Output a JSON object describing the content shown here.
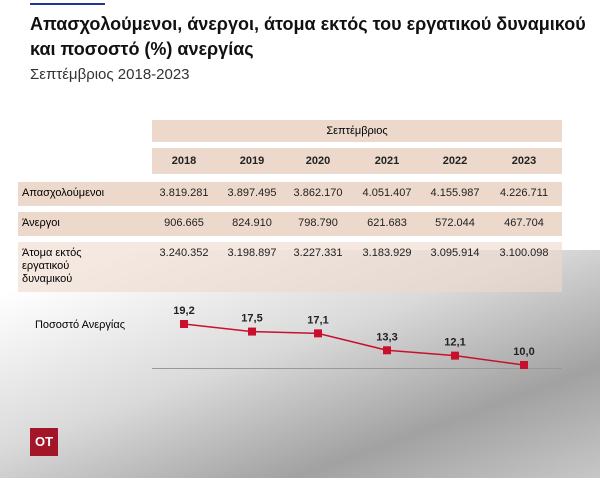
{
  "header": {
    "title": "Απασχολούμενοι, άνεργοι, άτομα εκτός του εργατικού δυναμικού και ποσοστό (%) ανεργίας",
    "subtitle": "Σεπτέμβριος 2018-2023"
  },
  "table": {
    "group_header": "Σεπτέμβριος",
    "columns": [
      "2018",
      "2019",
      "2020",
      "2021",
      "2022",
      "2023"
    ],
    "rows": [
      {
        "label": "Απασχολούμενοι",
        "cells": [
          "3.819.281",
          "3.897.495",
          "3.862.170",
          "4.051.407",
          "4.155.987",
          "4.226.711"
        ]
      },
      {
        "label": "Άνεργοι",
        "cells": [
          "906.665",
          "824.910",
          "798.790",
          "621.683",
          "572.044",
          "467.704"
        ]
      },
      {
        "label": "Άτομα εκτός εργατικού δυναμικού",
        "cells": [
          "3.240.352",
          "3.198.897",
          "3.227.331",
          "3.183.929",
          "3.095.914",
          "3.100.098"
        ]
      }
    ]
  },
  "chart_data": {
    "type": "line",
    "label": "Ποσοστό Ανεργίας",
    "categories": [
      "2018",
      "2019",
      "2020",
      "2021",
      "2022",
      "2023"
    ],
    "series": [
      {
        "name": "Ποσοστό Ανεργίας",
        "color": "#c8102e",
        "values": [
          19.2,
          17.5,
          17.1,
          13.3,
          12.1,
          10.0
        ],
        "value_labels": [
          "19,2",
          "17,5",
          "17,1",
          "13,3",
          "12,1",
          "10,0"
        ]
      }
    ]
  },
  "logo": "OT"
}
